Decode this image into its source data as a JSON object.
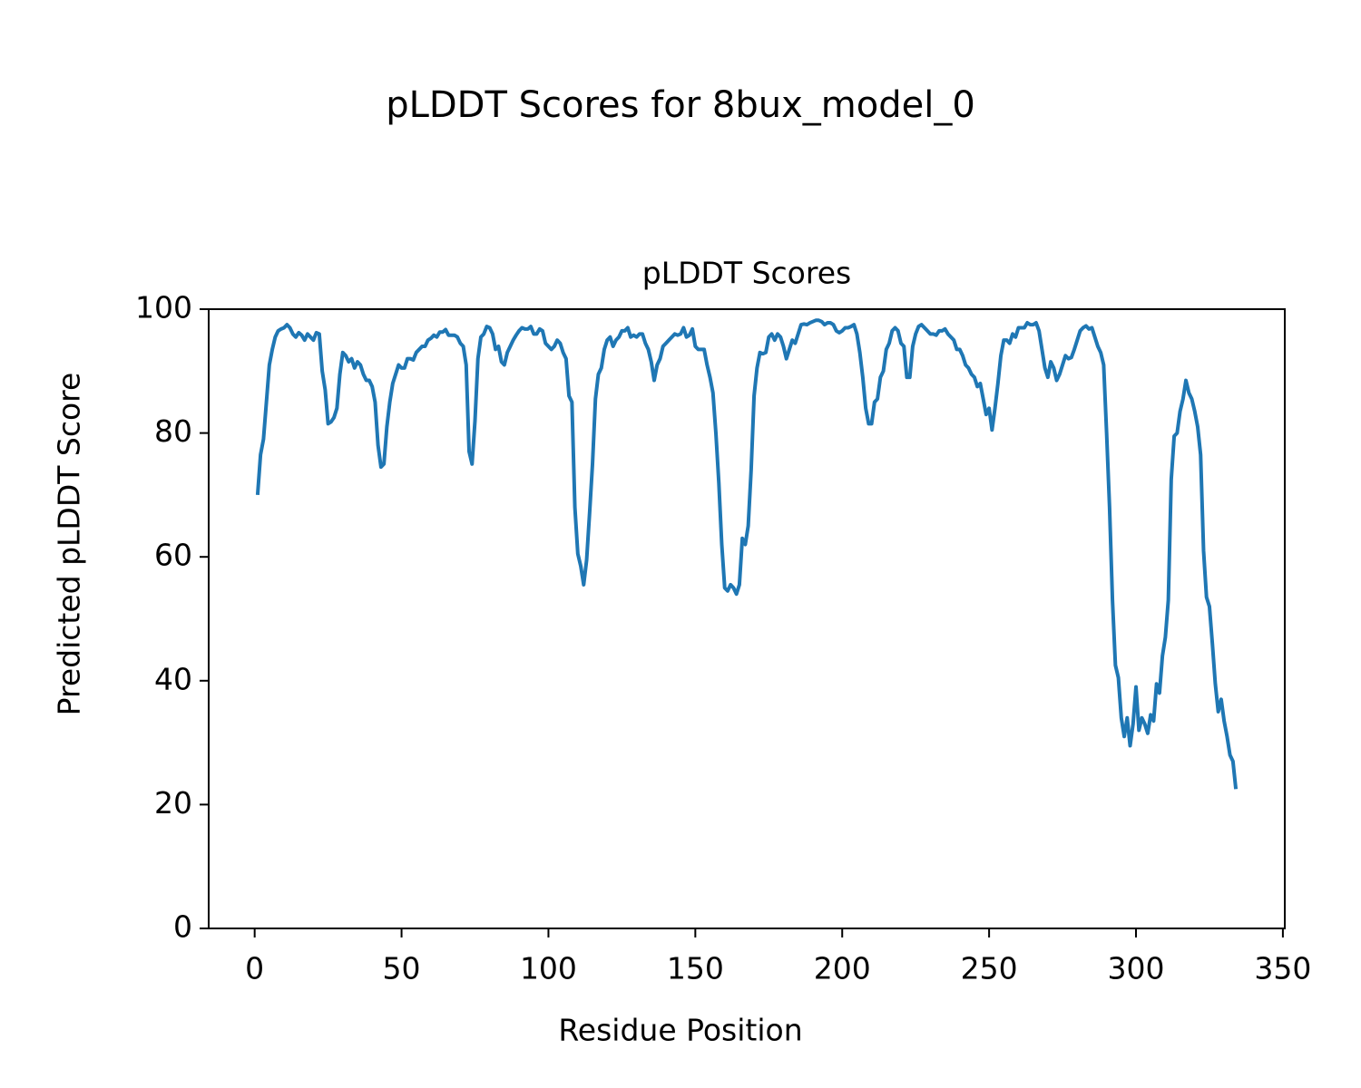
{
  "chart_data": {
    "type": "line",
    "title": "pLDDT Scores for 8bux_model_0",
    "subtitle": "pLDDT Scores",
    "x_label": "Residue Position",
    "y_label": "Predicted pLDDT Score",
    "color": "#1f77b4",
    "grid": false,
    "xlim": [
      -15.65,
      350.65
    ],
    "ylim": [
      0,
      100
    ],
    "xticks": [
      0,
      50,
      100,
      150,
      200,
      250,
      300,
      350
    ],
    "yticks": [
      0,
      20,
      40,
      60,
      80,
      100
    ],
    "x": [
      1,
      2,
      3,
      4,
      5,
      6,
      7,
      8,
      9,
      10,
      11,
      12,
      13,
      14,
      15,
      16,
      17,
      18,
      19,
      20,
      21,
      22,
      23,
      24,
      25,
      26,
      27,
      28,
      29,
      30,
      31,
      32,
      33,
      34,
      35,
      36,
      37,
      38,
      39,
      40,
      41,
      42,
      43,
      44,
      45,
      46,
      47,
      48,
      49,
      50,
      51,
      52,
      53,
      54,
      55,
      56,
      57,
      58,
      59,
      60,
      61,
      62,
      63,
      64,
      65,
      66,
      67,
      68,
      69,
      70,
      71,
      72,
      73,
      74,
      75,
      76,
      77,
      78,
      79,
      80,
      81,
      82,
      83,
      84,
      85,
      86,
      87,
      88,
      89,
      90,
      91,
      92,
      93,
      94,
      95,
      96,
      97,
      98,
      99,
      100,
      101,
      102,
      103,
      104,
      105,
      106,
      107,
      108,
      109,
      110,
      111,
      112,
      113,
      114,
      115,
      116,
      117,
      118,
      119,
      120,
      121,
      122,
      123,
      124,
      125,
      126,
      127,
      128,
      129,
      130,
      131,
      132,
      133,
      134,
      135,
      136,
      137,
      138,
      139,
      140,
      141,
      142,
      143,
      144,
      145,
      146,
      147,
      148,
      149,
      150,
      151,
      152,
      153,
      154,
      155,
      156,
      157,
      158,
      159,
      160,
      161,
      162,
      163,
      164,
      165,
      166,
      167,
      168,
      169,
      170,
      171,
      172,
      173,
      174,
      175,
      176,
      177,
      178,
      179,
      180,
      181,
      182,
      183,
      184,
      185,
      186,
      187,
      188,
      189,
      190,
      191,
      192,
      193,
      194,
      195,
      196,
      197,
      198,
      199,
      200,
      201,
      202,
      203,
      204,
      205,
      206,
      207,
      208,
      209,
      210,
      211,
      212,
      213,
      214,
      215,
      216,
      217,
      218,
      219,
      220,
      221,
      222,
      223,
      224,
      225,
      226,
      227,
      228,
      229,
      230,
      231,
      232,
      233,
      234,
      235,
      236,
      237,
      238,
      239,
      240,
      241,
      242,
      243,
      244,
      245,
      246,
      247,
      248,
      249,
      250,
      251,
      252,
      253,
      254,
      255,
      256,
      257,
      258,
      259,
      260,
      261,
      262,
      263,
      264,
      265,
      266,
      267,
      268,
      269,
      270,
      271,
      272,
      273,
      274,
      275,
      276,
      277,
      278,
      279,
      280,
      281,
      282,
      283,
      284,
      285,
      286,
      287,
      288,
      289,
      290,
      291,
      292,
      293,
      294,
      295,
      296,
      297,
      298,
      299,
      300,
      301,
      302,
      303,
      304,
      305,
      306,
      307,
      308,
      309,
      310,
      311,
      312,
      313,
      314,
      315,
      316,
      317,
      318,
      319,
      320,
      321,
      322,
      323,
      324,
      325,
      326,
      327,
      328,
      329,
      330,
      331,
      332,
      333,
      334
    ],
    "values": [
      70,
      76.5,
      79,
      85,
      91,
      93.5,
      95.5,
      96.5,
      96.8,
      97,
      97.5,
      97,
      96,
      95.5,
      96.2,
      95.8,
      95,
      96,
      95.5,
      95,
      96.2,
      96,
      90,
      87,
      81.5,
      81.8,
      82.5,
      84,
      89.5,
      93,
      92.5,
      91.5,
      92,
      90.5,
      91.5,
      91,
      89.5,
      88.5,
      88.5,
      87.5,
      85,
      78,
      74.5,
      75,
      81,
      85,
      88,
      89.5,
      91,
      90.5,
      90.5,
      92,
      92,
      91.8,
      93,
      93.5,
      94,
      94,
      95,
      95.3,
      95.8,
      95.5,
      96.3,
      96.3,
      96.7,
      95.8,
      95.8,
      95.8,
      95.5,
      94.5,
      94,
      91,
      77,
      75,
      82,
      92,
      95.5,
      96,
      97.2,
      97,
      96,
      93.5,
      94,
      91.5,
      91,
      93,
      94,
      95,
      95.8,
      96.5,
      97,
      96.8,
      96.8,
      97.2,
      96,
      96,
      96.8,
      96.5,
      94.5,
      94,
      93.5,
      94,
      95,
      94.5,
      93,
      92,
      86,
      85,
      68,
      60.5,
      58.5,
      55.5,
      59.5,
      67,
      75,
      85.5,
      89.5,
      90.5,
      93.5,
      95,
      95.5,
      94,
      95,
      95.5,
      96.5,
      96.5,
      97,
      95.5,
      95.8,
      95.5,
      96,
      96,
      94.5,
      93.5,
      91.5,
      88.5,
      91,
      92,
      94,
      94.5,
      95,
      95.5,
      96,
      95.8,
      96,
      97,
      95.5,
      95.8,
      96.8,
      94,
      93.5,
      93.5,
      93.5,
      91,
      89,
      86.5,
      80,
      72,
      62,
      55,
      54.5,
      55.5,
      55,
      54,
      55.5,
      63,
      62,
      65,
      74,
      86,
      90.5,
      93,
      92.8,
      93,
      95.5,
      96,
      95,
      96,
      95.5,
      94,
      92,
      93.5,
      95,
      94.5,
      96,
      97.5,
      97.6,
      97.5,
      97.8,
      98,
      98.2,
      98.2,
      98,
      97.5,
      97.8,
      97.8,
      97.5,
      96.5,
      96.2,
      96.5,
      97,
      97,
      97.2,
      97.5,
      96,
      93,
      89,
      84,
      81.5,
      81.5,
      85,
      85.5,
      89,
      90,
      93.5,
      94.5,
      96.5,
      97,
      96.5,
      94.5,
      94,
      89,
      89,
      94,
      96,
      97.2,
      97.5,
      97,
      96.5,
      96,
      96,
      95.8,
      96.5,
      96.5,
      96.8,
      96,
      95.5,
      95,
      93.5,
      93.5,
      92.5,
      91,
      90.5,
      89.5,
      89,
      87.5,
      88,
      85.5,
      83,
      84,
      80.5,
      84,
      88,
      92.5,
      95,
      95,
      94.5,
      96,
      95.5,
      97,
      97,
      97,
      97.8,
      97.5,
      97.5,
      97.8,
      96.5,
      93.5,
      90.5,
      89,
      91.5,
      90.5,
      88.5,
      89.5,
      91,
      92.5,
      92,
      92.2,
      93.5,
      95,
      96.5,
      97,
      97.3,
      96.8,
      97,
      95.5,
      94,
      93,
      91,
      80,
      68,
      53,
      42.5,
      40.5,
      34,
      31,
      34,
      29.5,
      33,
      39,
      32,
      34,
      33,
      31.5,
      34.5,
      33.5,
      39.5,
      38,
      44,
      47,
      53,
      72.5,
      79.5,
      80,
      83.5,
      85.5,
      88.5,
      86.5,
      85.5,
      83.5,
      81,
      76.5,
      61,
      53.5,
      52,
      46,
      39.5,
      35,
      37,
      33.5,
      31,
      28,
      27,
      22.5
    ]
  }
}
